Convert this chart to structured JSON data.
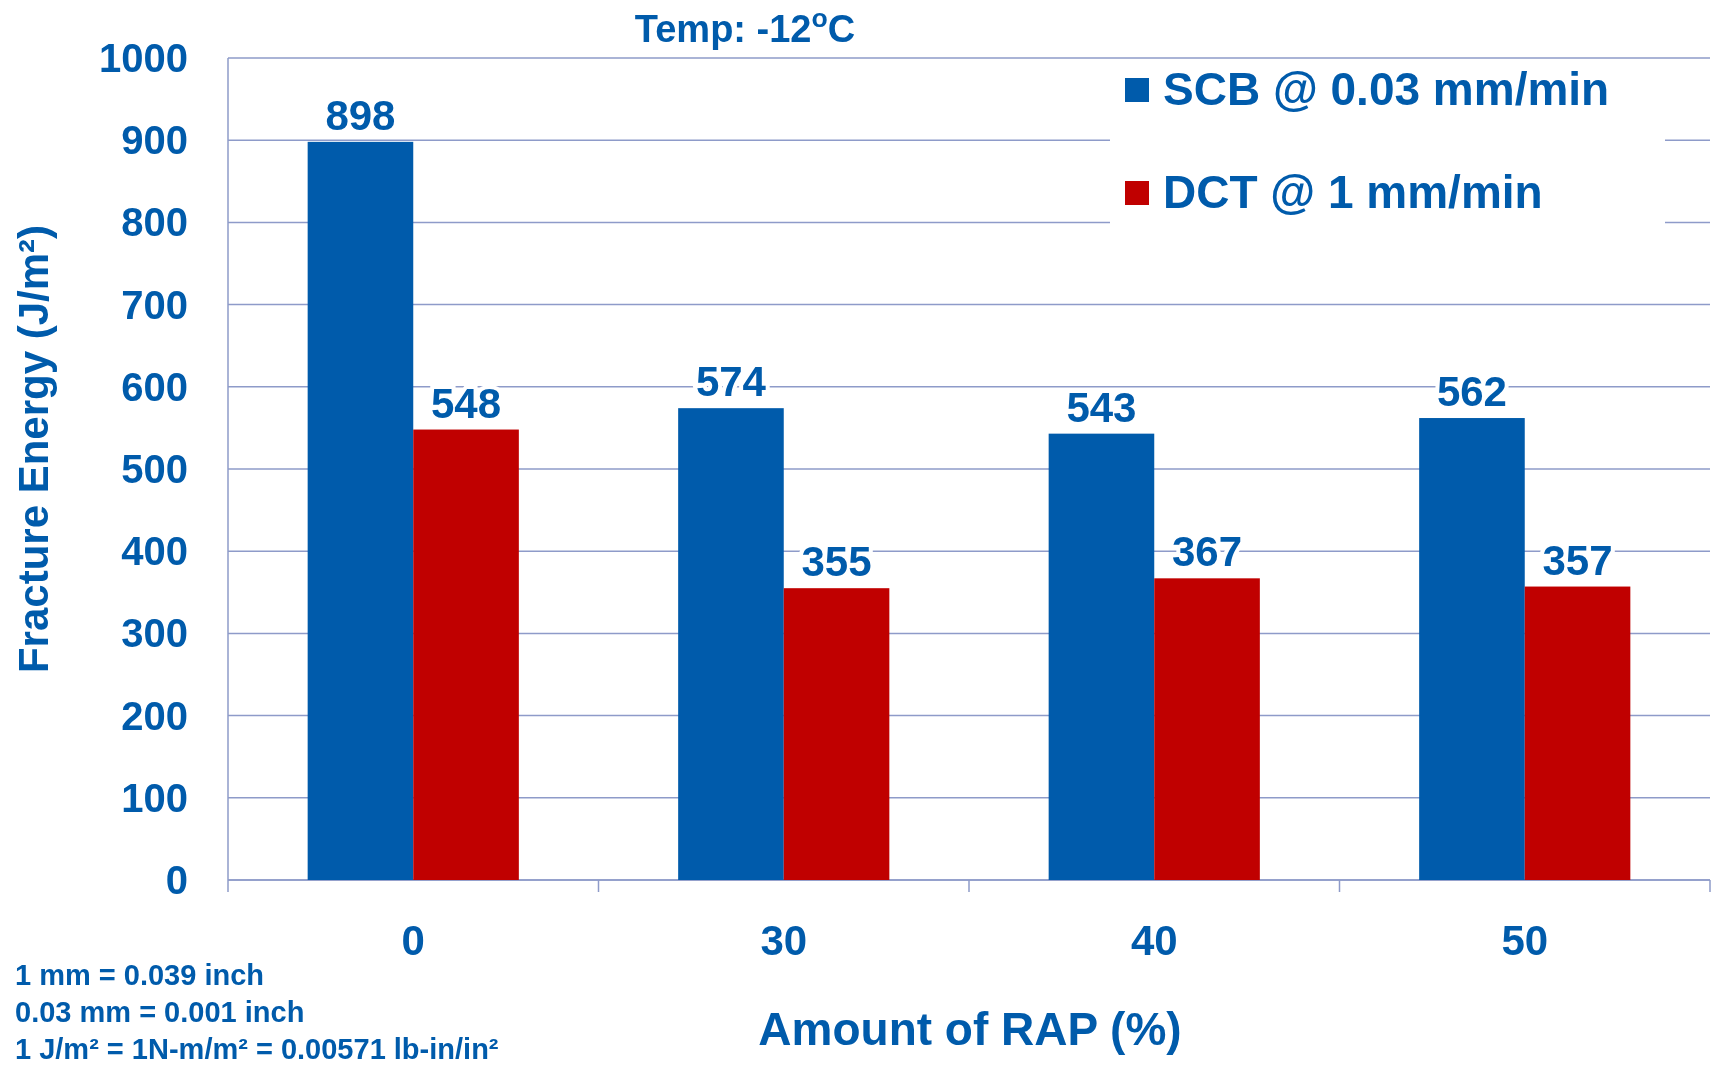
{
  "chart_data": {
    "type": "bar",
    "title": "Temp: -12$^{o}$C",
    "xlabel": "Amount of RAP (%)",
    "ylabel": "Fracture Energy (J/m²)",
    "categories": [
      "0",
      "30",
      "40",
      "50"
    ],
    "series": [
      {
        "name": "SCB @ 0.03 mm/min",
        "color": "#005bab",
        "values": [
          898,
          574,
          543,
          562
        ]
      },
      {
        "name": "DCT @ 1 mm/min",
        "color": "#c00000",
        "values": [
          548,
          355,
          367,
          357
        ]
      }
    ],
    "ylim": [
      0,
      1000
    ],
    "yticks": [
      0,
      100,
      200,
      300,
      400,
      500,
      600,
      700,
      800,
      900,
      1000
    ],
    "grid": "y",
    "legend": "top right",
    "data_labels": true,
    "annotations": [
      "1 mm = 0.039 inch",
      "0.03 mm = 0.001 inch",
      "1 J/m² = 1N-m/m² = 0.00571 lb-in/in²"
    ]
  }
}
